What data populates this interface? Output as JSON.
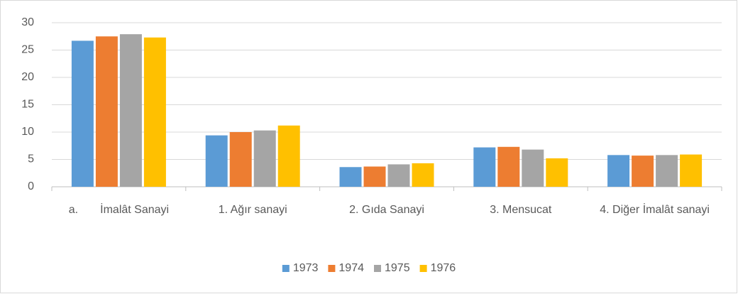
{
  "chart_data": {
    "type": "bar",
    "categories": [
      "a.       İmalât Sanayi",
      "1. Ağır sanayi",
      "2. Gıda Sanayi",
      "3. Mensucat",
      "4. Diğer İmalât sanayi"
    ],
    "series": [
      {
        "name": "1973",
        "color": "#5b9bd5",
        "values": [
          26.7,
          9.4,
          3.6,
          7.2,
          5.8
        ]
      },
      {
        "name": "1974",
        "color": "#ed7d31",
        "values": [
          27.5,
          10.0,
          3.7,
          7.3,
          5.7
        ]
      },
      {
        "name": "1975",
        "color": "#a5a5a5",
        "values": [
          27.9,
          10.3,
          4.1,
          6.8,
          5.8
        ]
      },
      {
        "name": "1976",
        "color": "#ffc000",
        "values": [
          27.3,
          11.2,
          4.3,
          5.2,
          5.9
        ]
      }
    ],
    "ylim": [
      0,
      30
    ],
    "yticks": [
      0,
      5,
      10,
      15,
      20,
      25,
      30
    ],
    "grid": true,
    "legend": "bottom"
  }
}
